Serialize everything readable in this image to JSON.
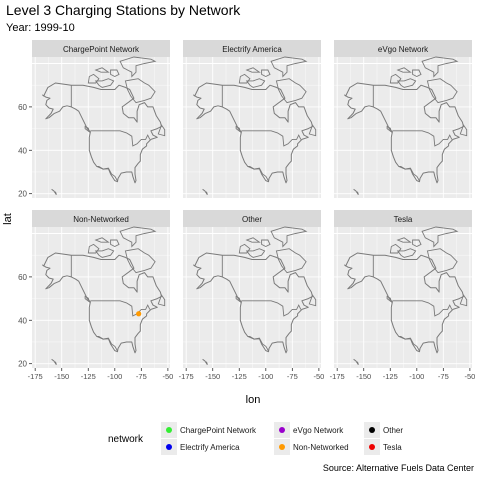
{
  "header": {
    "title": "Level 3 Charging Stations by Network",
    "subtitle": "Year: 1999-10"
  },
  "caption": "Source: Alternative Fuels Data Center",
  "colors": {
    "panel_bg": "#ebebeb",
    "strip_bg": "#d9d9d9",
    "grid": "#ffffff",
    "map_line": "#7a7a7a"
  },
  "chart_data": {
    "type": "scatter",
    "xlabel": "lon",
    "ylabel": "lat",
    "xlim": [
      -178,
      -48
    ],
    "ylim": [
      18,
      83
    ],
    "x_ticks": [
      -175,
      -150,
      -125,
      -100,
      -75,
      -50
    ],
    "x_tick_labels": [
      "-175",
      "-150",
      "-125",
      "-100",
      "-75",
      "-50"
    ],
    "y_ticks": [
      20,
      40,
      60
    ],
    "y_tick_labels": [
      "20",
      "40",
      "60"
    ],
    "grid": true,
    "facets": [
      "ChargePoint Network",
      "Electrify America",
      "eVgo Network",
      "Non-Networked",
      "Other",
      "Tesla"
    ],
    "legend": {
      "title": "network",
      "position": "bottom",
      "entries": [
        {
          "name": "ChargePoint Network",
          "color": "#33ee33"
        },
        {
          "name": "Electrify America",
          "color": "#0000ee"
        },
        {
          "name": "eVgo Network",
          "color": "#9900cc"
        },
        {
          "name": "Non-Networked",
          "color": "#ff9900"
        },
        {
          "name": "Other",
          "color": "#000000"
        },
        {
          "name": "Tesla",
          "color": "#ee0000"
        }
      ]
    },
    "series": [
      {
        "name": "Non-Networked",
        "facet": "Non-Networked",
        "points": [
          {
            "lon": -77.5,
            "lat": 43.0
          }
        ]
      }
    ]
  }
}
